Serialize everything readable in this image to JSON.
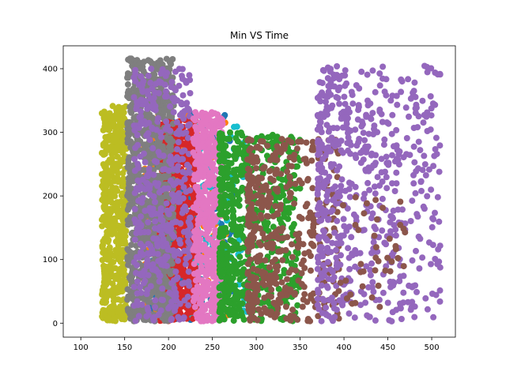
{
  "chart_data": {
    "type": "scatter",
    "title": "Min VS Time",
    "xlabel": "",
    "ylabel": "",
    "xlim": [
      80,
      527
    ],
    "ylim": [
      -22,
      436
    ],
    "grid": false,
    "x_ticks": [
      100,
      150,
      200,
      250,
      300,
      350,
      400,
      450,
      500
    ],
    "y_ticks": [
      0,
      100,
      200,
      300,
      400
    ],
    "series": [
      {
        "color": "#1f77b4",
        "x_range": [
          180,
          275
        ],
        "y_range": [
          5,
          330
        ],
        "count": 260,
        "seed": 11
      },
      {
        "color": "#ff7f0e",
        "x_range": [
          172,
          268
        ],
        "y_range": [
          5,
          330
        ],
        "count": 200,
        "seed": 23
      },
      {
        "color": "#17becf",
        "x_range": [
          225,
          290
        ],
        "y_range": [
          5,
          320
        ],
        "count": 140,
        "seed": 37
      },
      {
        "color": "#d62728",
        "x_range": [
          190,
          232
        ],
        "y_range": [
          3,
          320
        ],
        "count": 650,
        "seed": 41
      },
      {
        "color": "#bcbd22",
        "x_range": [
          124,
          152
        ],
        "y_range": [
          3,
          342
        ],
        "count": 520,
        "seed": 53
      },
      {
        "color": "#7f7f7f",
        "x_range": [
          153,
          206
        ],
        "y_range": [
          3,
          416
        ],
        "count": 950,
        "seed": 67
      },
      {
        "color": "#9467bd",
        "x_range": [
          160,
          225
        ],
        "y_range": [
          3,
          400
        ],
        "count": 420,
        "seed": 79
      },
      {
        "color": "#e377c2",
        "x_range": [
          228,
          262
        ],
        "y_range": [
          3,
          332
        ],
        "count": 520,
        "seed": 83
      },
      {
        "color": "#2ca02c",
        "x_range": [
          258,
          350
        ],
        "y_range": [
          3,
          300
        ],
        "count": 640,
        "seed": 97
      },
      {
        "color": "#8c564b",
        "x_range": [
          290,
          395
        ],
        "y_range": [
          3,
          290
        ],
        "count": 450,
        "seed": 103
      },
      {
        "color": "#9467bd",
        "x_range": [
          370,
          510
        ],
        "y_range": [
          3,
          405
        ],
        "count": 620,
        "seed": 109
      },
      {
        "color": "#8c564b",
        "x_range": [
          395,
          470
        ],
        "y_range": [
          3,
          200
        ],
        "count": 40,
        "seed": 127
      }
    ]
  }
}
